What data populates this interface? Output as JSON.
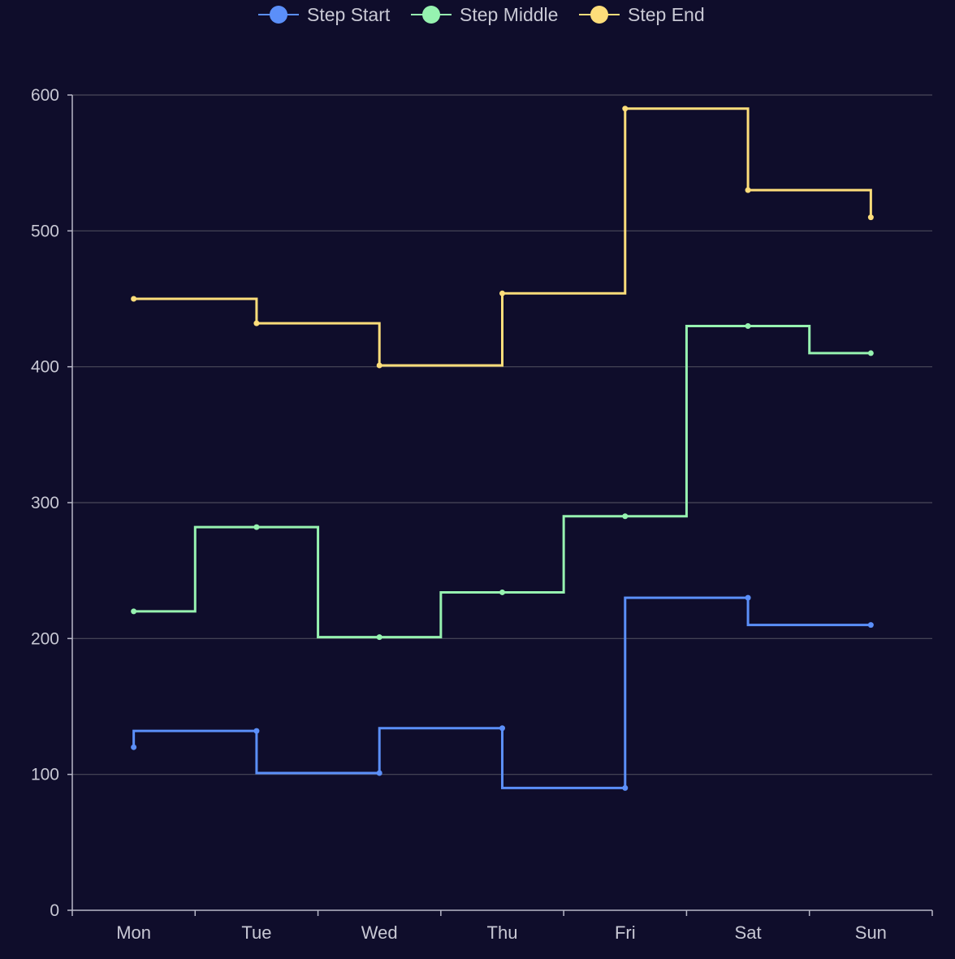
{
  "colors": {
    "background": "#0f0d2b",
    "grid": "#4a4a5a",
    "axis": "#b8b8c8",
    "text": "#c8c8d4"
  },
  "chart_data": {
    "type": "line",
    "step_line": true,
    "categories": [
      "Mon",
      "Tue",
      "Wed",
      "Thu",
      "Fri",
      "Sat",
      "Sun"
    ],
    "ylim": [
      0,
      600
    ],
    "y_ticks": [
      0,
      100,
      200,
      300,
      400,
      500,
      600
    ],
    "grid": true,
    "legend_position": "top",
    "series": [
      {
        "name": "Step Start",
        "step": "start",
        "color": "#5b8ff9",
        "values": [
          120,
          132,
          101,
          134,
          90,
          230,
          210
        ]
      },
      {
        "name": "Step Middle",
        "step": "middle",
        "color": "#96f2b0",
        "values": [
          220,
          282,
          201,
          234,
          290,
          430,
          410
        ]
      },
      {
        "name": "Step End",
        "step": "end",
        "color": "#fddd7a",
        "values": [
          450,
          432,
          401,
          454,
          590,
          530,
          510
        ]
      }
    ]
  }
}
